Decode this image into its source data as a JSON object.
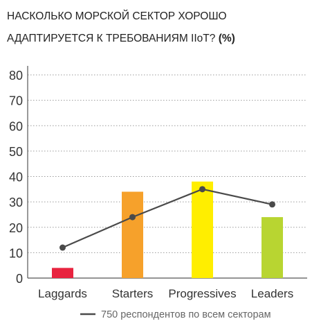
{
  "title": {
    "line1": "НАСКОЛЬКО МОРСКОЙ СЕКТОР ХОРОШО",
    "line2_main": "АДАПТИРУЕТСЯ К ТРЕБОВАНИЯМ  IIoT?",
    "line2_unit": "(%)"
  },
  "chart_data": {
    "type": "bar",
    "title": "НАСКОЛЬКО МОРСКОЙ СЕКТОР ХОРОШО АДАПТИРУЕТСЯ К ТРЕБОВАНИЯМ  IIoT? (%)",
    "categories": [
      "Laggards",
      "Starters",
      "Progressives",
      "Leaders"
    ],
    "yticks": [
      "0",
      "10",
      "20",
      "30",
      "40",
      "50",
      "60",
      "70",
      "80"
    ],
    "ylim": [
      0,
      80
    ],
    "grid": true,
    "series": [
      {
        "type": "bar",
        "values": [
          4,
          34,
          38,
          24
        ],
        "colors": [
          "#e8233f",
          "#f6a12b",
          "#ffee00",
          "#b8d531"
        ]
      },
      {
        "type": "line",
        "name": "750 респондентов по всем секторам",
        "values": [
          12,
          24,
          35,
          29
        ],
        "color": "#4a4a4a"
      }
    ],
    "legend": "bottom-right"
  }
}
